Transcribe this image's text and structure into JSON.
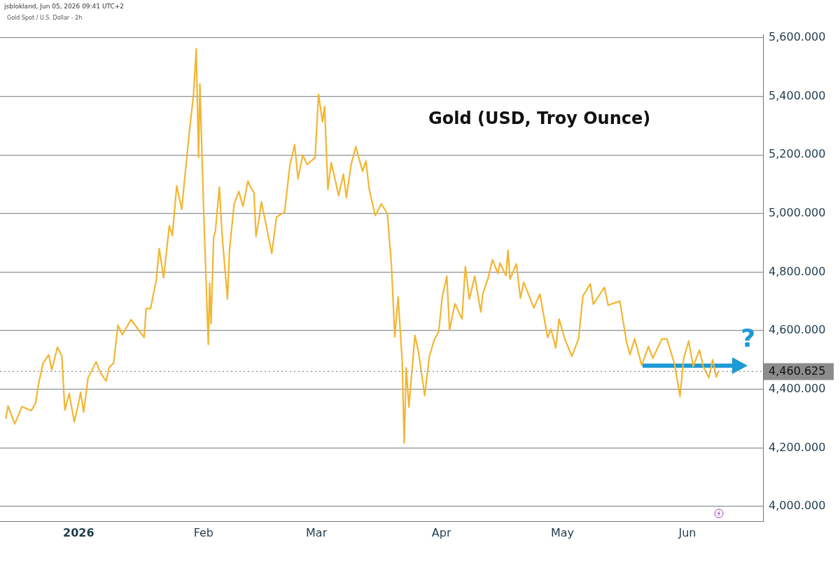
{
  "chart_data": {
    "type": "line",
    "title": "Gold (USD, Troy Ounce)",
    "annotations": [
      "jsblokland, Jun 05, 2026 09:41 UTC+2",
      "Gold Spot / U.S. Dollar - 2h",
      {
        "text": "?",
        "x": "2026-06-15",
        "y": 4460.625
      }
    ],
    "x": [
      "2025-12-13T22:00",
      "2025-12-14T12:00",
      "2025-12-16T04:00",
      "2025-12-17T22:00",
      "2025-12-20T06:00",
      "2025-12-21T08:00",
      "2025-12-22T02:00",
      "2025-12-23T04:00",
      "2025-12-24T14:00",
      "2025-12-25T08:00",
      "2025-12-26T18:00",
      "2025-12-27T20:00",
      "2025-12-28T14:00",
      "2025-12-29T16:00",
      "2025-12-30T22:00",
      "2025-12-31T20:00",
      "2026-01-01T12:00",
      "2026-01-02T06:00",
      "2026-01-03T08:00",
      "2026-01-05T08:00",
      "2026-01-06T10:00",
      "2026-01-07T20:00",
      "2026-01-08T14:00",
      "2026-01-09T16:00",
      "2026-01-10T18:00",
      "2026-01-11T20:00",
      "2026-01-14T00:00",
      "2026-01-15T18:00",
      "2026-01-17T06:00",
      "2026-01-17T18:00",
      "2026-01-18T20:00",
      "2026-01-20T06:00",
      "2026-01-21T00:00",
      "2026-01-22T02:00",
      "2026-01-23T12:00",
      "2026-01-24T06:00",
      "2026-01-25T08:00",
      "2026-01-26T14:00",
      "2026-01-27T04:00",
      "2026-01-28T14:00",
      "2026-01-29T12:00",
      "2026-01-30T04:00",
      "2026-01-30T18:00",
      "2026-01-31T02:00",
      "2026-02-01T00:00",
      "2026-02-02T04:00",
      "2026-02-02T12:00",
      "2026-02-02T20:00",
      "2026-02-03T12:00",
      "2026-02-03T22:00",
      "2026-02-04T22:00",
      "2026-02-05T14:00",
      "2026-02-06T22:00",
      "2026-02-07T10:00",
      "2026-02-08T14:00",
      "2026-02-09T18:00",
      "2026-02-10T18:00",
      "2026-02-12T00:00",
      "2026-02-12T12:00",
      "2026-02-13T12:00",
      "2026-02-14T00:00",
      "2026-02-14T20:00",
      "2026-02-15T08:00",
      "2026-02-16T00:00",
      "2026-02-17T22:00",
      "2026-02-19T02:00",
      "2026-02-21T02:00",
      "2026-02-22T10:00",
      "2026-02-23T14:00",
      "2026-02-24T10:00",
      "2026-02-25T14:00",
      "2026-02-26T16:00",
      "2026-02-28T16:00",
      "2026-03-01T12:00",
      "2026-03-02T12:00",
      "2026-03-03T00:00",
      "2026-03-03T20:00",
      "2026-03-04T16:00",
      "2026-03-06T12:00",
      "2026-03-07T16:00",
      "2026-03-08T10:00",
      "2026-03-09T14:00",
      "2026-03-10T18:00",
      "2026-03-12T10:00",
      "2026-03-13T06:00",
      "2026-03-14T02:00",
      "2026-03-15T14:00",
      "2026-03-17T02:00",
      "2026-03-18T14:00",
      "2026-03-19T14:00",
      "2026-03-20T10:00",
      "2026-03-21T06:00",
      "2026-03-22T06:00",
      "2026-03-22T18:00",
      "2026-03-23T06:00",
      "2026-03-23T22:00",
      "2026-03-25T10:00",
      "2026-03-26T08:00",
      "2026-03-27T20:00",
      "2026-03-29T00:00",
      "2026-03-30T04:00",
      "2026-03-31T08:00",
      "2026-04-01T04:00",
      "2026-04-02T08:00",
      "2026-04-03T00:00",
      "2026-04-04T08:00",
      "2026-04-06T02:00",
      "2026-04-06T22:00",
      "2026-04-07T22:00",
      "2026-04-09T06:00",
      "2026-04-10T18:00",
      "2026-04-11T06:00",
      "2026-04-12T12:00",
      "2026-04-13T16:00",
      "2026-04-15T00:00",
      "2026-04-15T12:00",
      "2026-04-17T00:00",
      "2026-04-17T12:00",
      "2026-04-18T00:00",
      "2026-04-19T14:00",
      "2026-04-20T14:00",
      "2026-04-21T10:00",
      "2026-04-23T22:00",
      "2026-04-25T10:00",
      "2026-04-27T08:00",
      "2026-04-28T04:00",
      "2026-04-29T08:00",
      "2026-04-30T04:00",
      "2026-05-01T14:00",
      "2026-05-03T08:00",
      "2026-05-05T00:00",
      "2026-05-06T02:00",
      "2026-05-07T22:00",
      "2026-05-08T16:00",
      "2026-05-11T10:00",
      "2026-05-12T08:00",
      "2026-05-15T06:00",
      "2026-05-16T22:00",
      "2026-05-17T18:00",
      "2026-05-18T22:00",
      "2026-05-20T16:00",
      "2026-05-22T08:00",
      "2026-05-23T10:00",
      "2026-05-25T16:00",
      "2026-05-26T22:00",
      "2026-05-28T18:00",
      "2026-05-30T04:00",
      "2026-05-31T02:00",
      "2026-06-01T08:00",
      "2026-06-02T10:00",
      "2026-06-04T00:00",
      "2026-06-04T22:00",
      "2026-06-06T08:00",
      "2026-06-07T06:00",
      "2026-06-08T04:00",
      "2026-06-08T16:00"
    ],
    "series": [
      {
        "color": "#f2b632",
        "values": [
          4299,
          4343,
          4282,
          4341,
          4327,
          4353,
          4419,
          4489,
          4518,
          4466,
          4544,
          4513,
          4329,
          4386,
          4289,
          4343,
          4390,
          4322,
          4438,
          4494,
          4456,
          4428,
          4475,
          4489,
          4619,
          4586,
          4638,
          4605,
          4577,
          4675,
          4675,
          4772,
          4880,
          4781,
          4958,
          4925,
          5094,
          5014,
          5099,
          5294,
          5405,
          5562,
          5191,
          5442,
          5014,
          4553,
          4762,
          4624,
          4920,
          4939,
          5090,
          4929,
          4708,
          4875,
          5033,
          5075,
          5024,
          5111,
          5094,
          5071,
          4922,
          4988,
          5040,
          4995,
          4864,
          4988,
          5005,
          5167,
          5235,
          5118,
          5200,
          5167,
          5191,
          5407,
          5313,
          5365,
          5082,
          5174,
          5061,
          5134,
          5054,
          5167,
          5228,
          5144,
          5179,
          5082,
          4993,
          5033,
          5000,
          4826,
          4579,
          4715,
          4496,
          4216,
          4473,
          4339,
          4584,
          4525,
          4379,
          4513,
          4567,
          4598,
          4713,
          4786,
          4602,
          4692,
          4640,
          4819,
          4708,
          4786,
          4664,
          4725,
          4776,
          4842,
          4795,
          4831,
          4788,
          4875,
          4776,
          4828,
          4711,
          4765,
          4678,
          4725,
          4577,
          4605,
          4541,
          4640,
          4572,
          4513,
          4572,
          4718,
          4760,
          4690,
          4748,
          4687,
          4701,
          4560,
          4518,
          4572,
          4482,
          4546,
          4506,
          4572,
          4572,
          4489,
          4376,
          4506,
          4565,
          4478,
          4534,
          4478,
          4440,
          4501,
          4442,
          4461
        ]
      }
    ],
    "xlim": [
      "2025-12-12T12:00",
      "2026-06-19T18:00"
    ],
    "xticks": [
      {
        "value": "2026-01-01",
        "label": "2026"
      },
      {
        "value": "2026-02-01",
        "label": "Feb"
      },
      {
        "value": "2026-03-01",
        "label": "Mar"
      },
      {
        "value": "2026-04-01",
        "label": "Apr"
      },
      {
        "value": "2026-05-01",
        "label": "May"
      },
      {
        "value": "2026-06-01",
        "label": "Jun"
      }
    ],
    "ylim": [
      3950,
      5610
    ],
    "yticks": [
      {
        "value": 4000,
        "label": "4,000.000"
      },
      {
        "value": 4200,
        "label": "4,200.000"
      },
      {
        "value": 4400,
        "label": "4,400.000"
      },
      {
        "value": 4600,
        "label": "4,600.000"
      },
      {
        "value": 4800,
        "label": "4,800.000"
      },
      {
        "value": 5000,
        "label": "5,000.000"
      },
      {
        "value": 5200,
        "label": "5,200.000"
      },
      {
        "value": 5400,
        "label": "5,400.000"
      },
      {
        "value": 5600,
        "label": "5,600.000"
      }
    ],
    "ref_lines": [
      {
        "axis": "y",
        "value": 4460.625,
        "label": "4,460.625",
        "color": "#8c8c8c",
        "line_style": "dotted"
      }
    ],
    "grid": "y",
    "legend": false,
    "marker": "none",
    "line_style": "solid"
  }
}
